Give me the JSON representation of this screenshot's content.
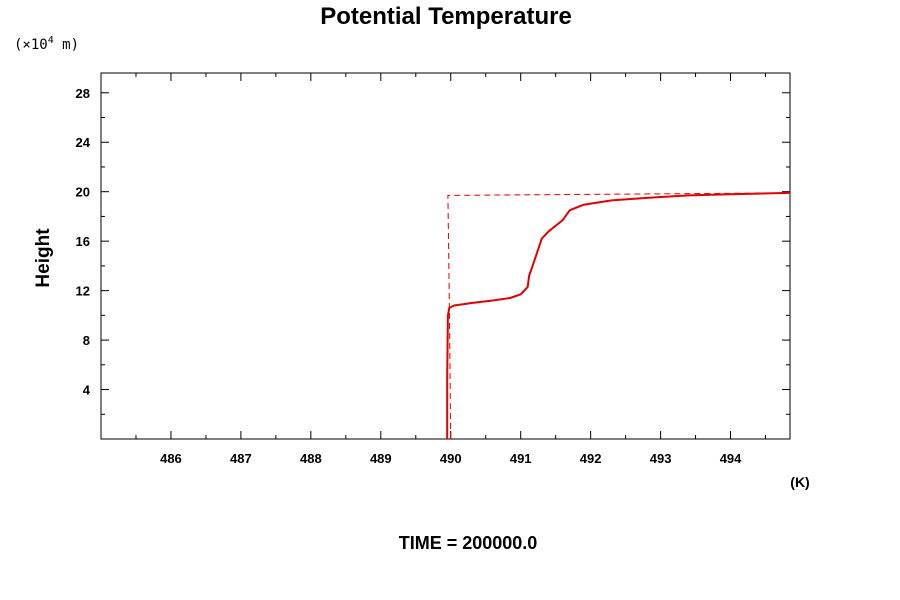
{
  "chart_data": {
    "type": "line",
    "title": "Potential Temperature",
    "ylabel": "Height",
    "y_unit_prefix": "(×10",
    "y_unit_exp": "4",
    "y_unit_suffix": " m)",
    "x_unit": "(K)",
    "footer": "TIME = 200000.0",
    "xlim": [
      485.0,
      494.85
    ],
    "ylim": [
      0,
      29.6
    ],
    "x_ticks": [
      486,
      487,
      488,
      489,
      490,
      491,
      492,
      493,
      494
    ],
    "x_tick_labels": [
      "486",
      "487",
      "488",
      "489",
      "490",
      "491",
      "492",
      "493",
      "494"
    ],
    "y_ticks": [
      4,
      8,
      12,
      16,
      20,
      24,
      28
    ],
    "y_tick_labels": [
      "4",
      "8",
      "12",
      "16",
      "20",
      "24",
      "28"
    ],
    "series": [
      {
        "style": "solid",
        "color": "#e00000",
        "points": [
          [
            489.95,
            0
          ],
          [
            489.95,
            5
          ],
          [
            489.96,
            10.0
          ],
          [
            489.98,
            10.6
          ],
          [
            490.05,
            10.8
          ],
          [
            490.3,
            11.0
          ],
          [
            490.6,
            11.2
          ],
          [
            490.85,
            11.4
          ],
          [
            491.0,
            11.7
          ],
          [
            491.1,
            12.3
          ],
          [
            491.12,
            13.2
          ],
          [
            491.2,
            14.5
          ],
          [
            491.3,
            16.2
          ],
          [
            491.4,
            16.8
          ],
          [
            491.6,
            17.7
          ],
          [
            491.7,
            18.5
          ],
          [
            491.9,
            18.95
          ],
          [
            492.3,
            19.3
          ],
          [
            492.8,
            19.5
          ],
          [
            493.4,
            19.7
          ],
          [
            494.0,
            19.8
          ],
          [
            494.85,
            19.9
          ]
        ]
      },
      {
        "style": "dashed",
        "color": "#e00000",
        "points": [
          [
            490.0,
            0
          ],
          [
            489.98,
            11.3
          ],
          [
            489.96,
            19.7
          ],
          [
            494.85,
            19.9
          ]
        ]
      }
    ]
  }
}
